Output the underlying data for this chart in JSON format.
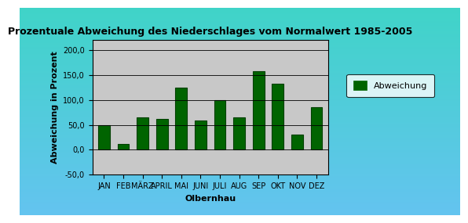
{
  "title": "Prozentuale Abweichung des Niederschlages vom Normalwert 1985-2005",
  "xlabel": "Olbernhau",
  "ylabel": "Abweichung in Prozent",
  "categories": [
    "JAN",
    "FEB",
    "MÄRZ",
    "APRIL",
    "MAI",
    "JUNI",
    "JULI",
    "AUG",
    "SEP",
    "OKT",
    "NOV",
    "DEZ"
  ],
  "values": [
    50,
    12,
    65,
    62,
    125,
    58,
    100,
    65,
    157,
    132,
    30,
    85
  ],
  "bar_color": "#006400",
  "bar_edge_color": "#004000",
  "ylim": [
    -50,
    220
  ],
  "yticks": [
    -50,
    0,
    50,
    100,
    150,
    200
  ],
  "ytick_labels": [
    "-50,0",
    "0,0",
    "50,0",
    "100,0",
    "150,0",
    "200,0"
  ],
  "legend_label": "Abweichung",
  "plot_bg_color": "#c8c8c8",
  "grad_top": "#40d4c8",
  "grad_bottom": "#60b8e8",
  "title_fontsize": 9,
  "axis_label_fontsize": 8,
  "tick_fontsize": 7
}
